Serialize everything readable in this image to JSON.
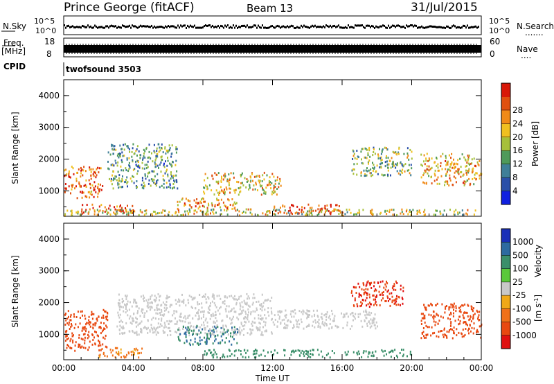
{
  "header": {
    "station": "Prince George (fitACF)",
    "beam": "Beam 13",
    "date": "31/Jul/2015"
  },
  "top_panels": {
    "nsky_label": "N.Sky",
    "nsearch_label": "N.Search",
    "nsearch_dots": ".......",
    "count_axis_top": "10^5",
    "count_axis_bottom": "10^0",
    "freq_label": "Freq.",
    "freq_unit": "[MHz]",
    "freq_top": "18",
    "freq_bottom": "8",
    "nave_top": "60",
    "nave_bottom": "0",
    "nave_label": "Nave",
    "nave_dots": "....",
    "cpid_label": "CPID",
    "cpid_value": "twofsound 3503"
  },
  "chart_data": [
    {
      "type": "heatmap",
      "name": "power",
      "ylabel": "Slant Range [km]",
      "ylim": [
        200,
        4500
      ],
      "y_ticks": [
        "1000",
        "2000",
        "3000",
        "4000"
      ],
      "x_ticks": [
        "00:00",
        "04:00",
        "08:00",
        "12:00",
        "16:00",
        "20:00",
        "00:00"
      ],
      "xlim_hours": [
        0,
        24
      ],
      "colorbar": {
        "label": "Power [dB]",
        "tick_labels": [
          "4",
          "8",
          "12",
          "16",
          "20",
          "24",
          "28"
        ],
        "colors": [
          "#1020e0",
          "#2a4fa8",
          "#3f7f98",
          "#4f9a5a",
          "#a6c03a",
          "#f0c020",
          "#f08a18",
          "#e05010",
          "#d81808"
        ]
      },
      "echo_regions": [
        {
          "t0": 0.0,
          "t1": 2.2,
          "r0": 800,
          "r1": 1800,
          "level": 0.8
        },
        {
          "t0": 1.0,
          "t1": 4.0,
          "r0": 300,
          "r1": 600,
          "level": 0.85
        },
        {
          "t0": 2.5,
          "t1": 6.5,
          "r0": 1100,
          "r1": 2500,
          "level": 0.35
        },
        {
          "t0": 6.5,
          "t1": 10.0,
          "r0": 400,
          "r1": 800,
          "level": 0.7
        },
        {
          "t0": 8.0,
          "t1": 12.5,
          "r0": 900,
          "r1": 1600,
          "level": 0.6
        },
        {
          "t0": 12.0,
          "t1": 16.0,
          "r0": 300,
          "r1": 600,
          "level": 0.9
        },
        {
          "t0": 16.5,
          "t1": 20.0,
          "r0": 1500,
          "r1": 2400,
          "level": 0.45
        },
        {
          "t0": 20.5,
          "t1": 24.0,
          "r0": 1200,
          "r1": 2200,
          "level": 0.65
        },
        {
          "t0": 0.0,
          "t1": 24.0,
          "r0": 250,
          "r1": 450,
          "level": 0.55
        }
      ]
    },
    {
      "type": "heatmap",
      "name": "velocity",
      "ylabel": "Slant Range [km]",
      "ylim": [
        200,
        4500
      ],
      "y_ticks": [
        "1000",
        "2000",
        "3000",
        "4000"
      ],
      "x_ticks": [
        "00:00",
        "04:00",
        "08:00",
        "12:00",
        "16:00",
        "20:00",
        "00:00"
      ],
      "xlabel": "Time UT",
      "colorbar": {
        "label": "Velocity",
        "unit": "[m s",
        "unit_exp": "-1",
        "unit_close": "]",
        "tick_labels": [
          "1000",
          "500",
          "100",
          "25",
          "-25",
          "-100",
          "-500",
          "-1000"
        ],
        "colors": [
          "#1a2fb8",
          "#2d6aa0",
          "#3b8f6a",
          "#5ac83a",
          "#c8c8c8",
          "#f0a818",
          "#f07018",
          "#e84810",
          "#e01010"
        ]
      },
      "echo_regions": [
        {
          "t0": 0.0,
          "t1": 2.5,
          "r0": 500,
          "r1": 1800,
          "value": -500
        },
        {
          "t0": 2.0,
          "t1": 4.5,
          "r0": 300,
          "r1": 600,
          "value": -100
        },
        {
          "t0": 3.0,
          "t1": 12.0,
          "r0": 1000,
          "r1": 2300,
          "value": 0
        },
        {
          "t0": 6.5,
          "t1": 10.0,
          "r0": 700,
          "r1": 1300,
          "value": 300
        },
        {
          "t0": 8.0,
          "t1": 20.0,
          "r0": 300,
          "r1": 550,
          "value": 150
        },
        {
          "t0": 16.5,
          "t1": 19.5,
          "r0": 1900,
          "r1": 2700,
          "value": -700
        },
        {
          "t0": 20.5,
          "t1": 24.0,
          "r0": 900,
          "r1": 2000,
          "value": -500
        },
        {
          "t0": 12.0,
          "t1": 18.0,
          "r0": 1200,
          "r1": 1800,
          "value": 0
        }
      ]
    }
  ]
}
